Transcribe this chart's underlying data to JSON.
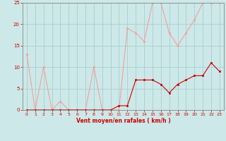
{
  "x": [
    0,
    1,
    2,
    3,
    4,
    5,
    6,
    7,
    8,
    9,
    10,
    11,
    12,
    13,
    14,
    15,
    16,
    17,
    18,
    19,
    20,
    21,
    22,
    23
  ],
  "rafales": [
    13,
    0,
    10,
    0,
    2,
    0,
    0,
    0,
    10,
    0,
    0,
    0,
    19,
    18,
    16,
    25,
    25,
    18,
    15,
    18,
    21,
    25,
    25,
    25
  ],
  "moyen": [
    0,
    0,
    0,
    0,
    0,
    0,
    0,
    0,
    0,
    0,
    0,
    1,
    1,
    7,
    7,
    7,
    6,
    4,
    6,
    7,
    8,
    8,
    11,
    9
  ],
  "color_rafales": "#f4a0a0",
  "color_moyen": "#cc0000",
  "bg_color": "#cce8e8",
  "grid_color": "#aacece",
  "xlabel": "Vent moyen/en rafales ( km/h )",
  "xlabel_color": "#cc0000",
  "tick_color": "#cc0000",
  "spine_color": "#888888",
  "ylim": [
    0,
    25
  ],
  "xlim": [
    -0.5,
    23.5
  ],
  "yticks": [
    0,
    5,
    10,
    15,
    20,
    25
  ],
  "xticks": [
    0,
    1,
    2,
    3,
    4,
    5,
    6,
    7,
    8,
    9,
    10,
    11,
    12,
    13,
    14,
    15,
    16,
    17,
    18,
    19,
    20,
    21,
    22,
    23
  ]
}
